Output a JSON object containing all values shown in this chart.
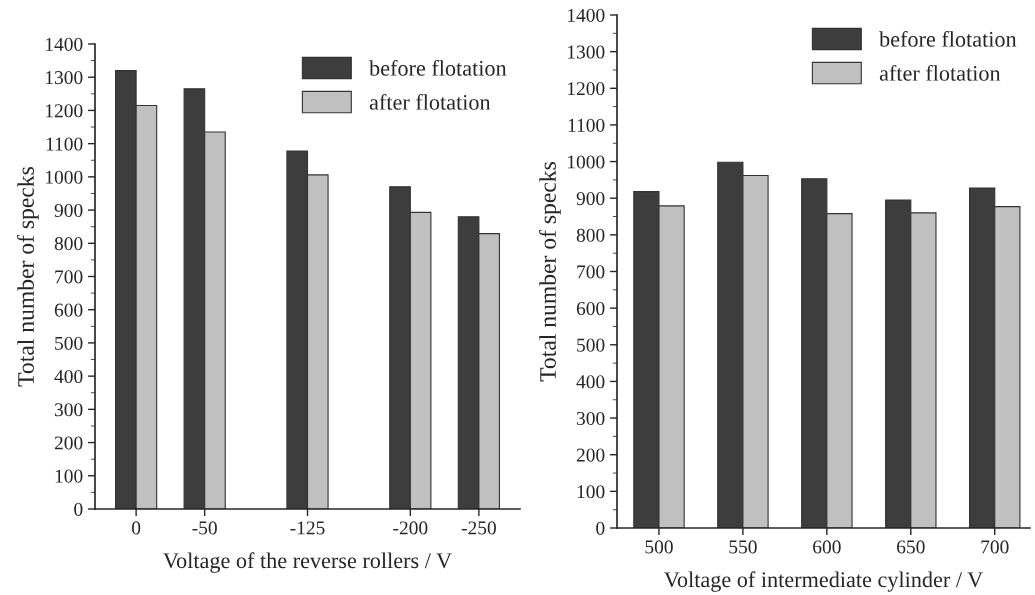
{
  "chart_data": [
    {
      "type": "bar",
      "xlabel": "Voltage of the reverse rollers / V",
      "ylabel": "Total number of specks",
      "x": [
        0,
        -50,
        -125,
        -200,
        -250
      ],
      "xlim": [
        30,
        -280
      ],
      "xticks": [
        0,
        -50,
        -125,
        -200,
        -250
      ],
      "ylim": [
        0,
        1400
      ],
      "yticks": [
        0,
        100,
        200,
        300,
        400,
        500,
        600,
        700,
        800,
        900,
        1000,
        1100,
        1200,
        1300,
        1400
      ],
      "legend": "top right",
      "series": [
        {
          "name": "before flotation",
          "color": "#3d3d3d",
          "values": [
            1320,
            1265,
            1078,
            970,
            880
          ]
        },
        {
          "name": "after flotation",
          "color": "#c0c0c0",
          "values": [
            1215,
            1135,
            1006,
            893,
            829
          ]
        }
      ]
    },
    {
      "type": "bar",
      "xlabel": "Voltage of intermediate cylinder / V",
      "ylabel": "Total number of specks",
      "x": [
        500,
        550,
        600,
        650,
        700
      ],
      "xlim": [
        475,
        721
      ],
      "xticks": [
        500,
        550,
        600,
        650,
        700
      ],
      "ylim": [
        0,
        1400
      ],
      "yticks": [
        0,
        100,
        200,
        300,
        400,
        500,
        600,
        700,
        800,
        900,
        1000,
        1100,
        1200,
        1300,
        1400
      ],
      "legend": "top right",
      "series": [
        {
          "name": "before flotation",
          "color": "#3d3d3d",
          "values": [
            918,
            998,
            953,
            895,
            928
          ]
        },
        {
          "name": "after flotation",
          "color": "#c0c0c0",
          "values": [
            879,
            962,
            858,
            860,
            877
          ]
        }
      ]
    }
  ]
}
